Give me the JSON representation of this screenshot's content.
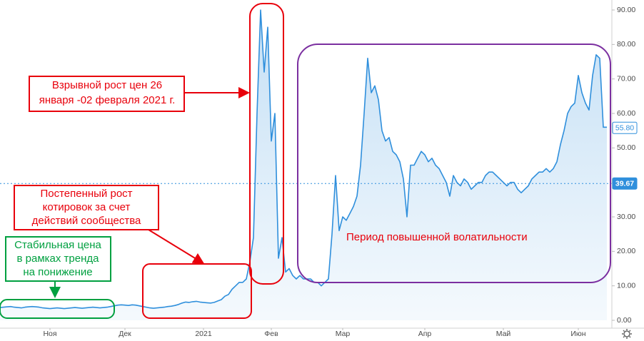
{
  "chart_data": {
    "type": "line",
    "series": [
      {
        "color": "#2f8fdc",
        "values": [
          3.7,
          3.8,
          3.9,
          4.0,
          3.8,
          3.7,
          3.6,
          3.8,
          3.9,
          4.0,
          3.9,
          3.8,
          3.6,
          3.5,
          3.4,
          3.5,
          3.6,
          3.5,
          3.4,
          3.5,
          3.6,
          3.7,
          3.6,
          3.5,
          3.6,
          3.7,
          3.8,
          3.7,
          3.6,
          3.7,
          3.8,
          4.0,
          4.2,
          4.4,
          4.5,
          4.4,
          4.3,
          4.5,
          4.4,
          4.2,
          4.0,
          3.8,
          3.6,
          3.5,
          3.6,
          3.7,
          3.8,
          4.0,
          4.1,
          4.3,
          4.6,
          5.0,
          5.3,
          5.2,
          5.4,
          5.5,
          5.3,
          5.2,
          5.1,
          5.0,
          5.2,
          5.6,
          6.0,
          7.0,
          7.5,
          9.0,
          10.0,
          11.0,
          11.0,
          12.0,
          17,
          24,
          60,
          90,
          72,
          85,
          52,
          60,
          18,
          24,
          14,
          15,
          13,
          12,
          13,
          12,
          12,
          12,
          11,
          11,
          10,
          11,
          12,
          25,
          42,
          26,
          30,
          29,
          31,
          33,
          36,
          45,
          60,
          76,
          66,
          68,
          64,
          55,
          52,
          53,
          49,
          48,
          46,
          41,
          30,
          45,
          45,
          47,
          49,
          48,
          46,
          47,
          45,
          44,
          42,
          40,
          36,
          42,
          40,
          39,
          41,
          40,
          38,
          39,
          40,
          40,
          42,
          43,
          43,
          42,
          41,
          40,
          39,
          40,
          40,
          38,
          37,
          38,
          39,
          41,
          42,
          43,
          43,
          44,
          43,
          44,
          46,
          51,
          55,
          60,
          62,
          63,
          71,
          66,
          63,
          61,
          71,
          77,
          76,
          56,
          56
        ]
      }
    ],
    "xlim": [
      0,
      170
    ],
    "xticks": [
      {
        "value": 14,
        "label": "Ноя"
      },
      {
        "value": 35,
        "label": "Дек"
      },
      {
        "value": 57,
        "label": "2021"
      },
      {
        "value": 76,
        "label": "Фев"
      },
      {
        "value": 96,
        "label": "Мар"
      },
      {
        "value": 119,
        "label": "Апр"
      },
      {
        "value": 141,
        "label": "Май"
      },
      {
        "value": 162,
        "label": "Июн"
      }
    ],
    "ylim": [
      0,
      90
    ],
    "yticks": [
      {
        "value": 0,
        "label": "0.00"
      },
      {
        "value": 10,
        "label": "10.00"
      },
      {
        "value": 20,
        "label": "20.00"
      },
      {
        "value": 30,
        "label": "30.00"
      },
      {
        "value": 40,
        "label": "40.00"
      },
      {
        "value": 50,
        "label": "50.00"
      },
      {
        "value": 60,
        "label": "60.00"
      },
      {
        "value": 70,
        "label": "70.00"
      },
      {
        "value": 80,
        "label": "80.00"
      },
      {
        "value": 90,
        "label": "90.00"
      }
    ],
    "price_lines": [
      {
        "value": 55.8,
        "label": "55.80"
      },
      {
        "value": 39.67,
        "label": "39.67"
      }
    ],
    "annotations": [
      {
        "lines": [
          "Взрывной рост цен 26",
          "января -02 февраля 2021 г."
        ],
        "color": "#e8000b"
      },
      {
        "lines": [
          "Постепенный рост",
          "котировок за счет",
          "действий сообщества"
        ],
        "color": "#e8000b"
      },
      {
        "lines": [
          "Стабильная цена",
          "в рамках тренда",
          "на понижение"
        ],
        "color": "#00a040"
      },
      {
        "lines": [
          "Период повышенной волатильности"
        ],
        "color": "#e8000b"
      }
    ]
  }
}
